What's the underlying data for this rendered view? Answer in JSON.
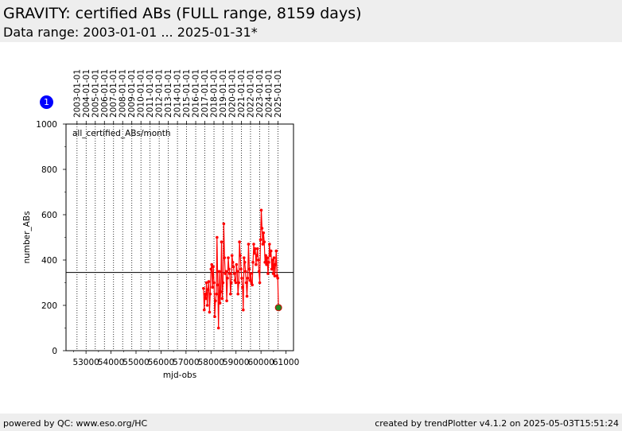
{
  "header": {
    "title": "GRAVITY: certified ABs (FULL range, 8159 days)",
    "subtitle": "Data range: 2003-01-01 ... 2025-01-31*"
  },
  "footer": {
    "left": "powered by QC: www.eso.org/HC",
    "right": "created by trendPlotter v4.1.2 on 2025-05-03T15:51:24"
  },
  "badge": {
    "label": "1",
    "color": "#0000ff"
  },
  "chart_data": {
    "type": "line",
    "annotation": "all_certified_ABs/month",
    "xlabel": "mjd-obs",
    "ylabel": "number_ABs",
    "xlim": [
      52200,
      61300
    ],
    "ylim": [
      0,
      1000
    ],
    "x_ticks": [
      53000,
      54000,
      55000,
      56000,
      57000,
      58000,
      59000,
      60000,
      61000
    ],
    "y_ticks": [
      0,
      200,
      400,
      600,
      800,
      1000
    ],
    "date_ticks": [
      {
        "label": "2003-01-01",
        "mjd": 52640
      },
      {
        "label": "2004-01-01",
        "mjd": 53005
      },
      {
        "label": "2005-01-01",
        "mjd": 53371
      },
      {
        "label": "2006-01-01",
        "mjd": 53736
      },
      {
        "label": "2007-01-01",
        "mjd": 54101
      },
      {
        "label": "2008-01-01",
        "mjd": 54466
      },
      {
        "label": "2009-01-01",
        "mjd": 54832
      },
      {
        "label": "2010-01-01",
        "mjd": 55197
      },
      {
        "label": "2011-01-01",
        "mjd": 55562
      },
      {
        "label": "2012-01-01",
        "mjd": 55927
      },
      {
        "label": "2013-01-01",
        "mjd": 56293
      },
      {
        "label": "2014-01-01",
        "mjd": 56658
      },
      {
        "label": "2015-01-01",
        "mjd": 57023
      },
      {
        "label": "2016-01-01",
        "mjd": 57388
      },
      {
        "label": "2017-01-01",
        "mjd": 57754
      },
      {
        "label": "2018-01-01",
        "mjd": 58119
      },
      {
        "label": "2019-01-01",
        "mjd": 58484
      },
      {
        "label": "2020-01-01",
        "mjd": 58849
      },
      {
        "label": "2021-01-01",
        "mjd": 59215
      },
      {
        "label": "2022-01-01",
        "mjd": 59580
      },
      {
        "label": "2023-01-01",
        "mjd": 59945
      },
      {
        "label": "2024-01-01",
        "mjd": 60310
      },
      {
        "label": "2025-01-01",
        "mjd": 60676
      }
    ],
    "reference_line": 345,
    "series_color": "#ff0000",
    "last_point_color": "#228b22",
    "x": [
      57700,
      57730,
      57760,
      57790,
      57820,
      57850,
      57880,
      57910,
      57940,
      57970,
      58000,
      58030,
      58060,
      58090,
      58120,
      58150,
      58180,
      58210,
      58240,
      58270,
      58300,
      58330,
      58360,
      58390,
      58420,
      58450,
      58480,
      58510,
      58540,
      58570,
      58600,
      58630,
      58660,
      58690,
      58720,
      58750,
      58780,
      58810,
      58840,
      58870,
      58900,
      58930,
      58960,
      58990,
      59020,
      59050,
      59080,
      59110,
      59140,
      59170,
      59200,
      59230,
      59260,
      59290,
      59320,
      59350,
      59380,
      59410,
      59440,
      59470,
      59500,
      59530,
      59560,
      59590,
      59620,
      59650,
      59680,
      59710,
      59740,
      59770,
      59800,
      59830,
      59860,
      59890,
      59920,
      59950,
      59980,
      60010,
      60040,
      60070,
      60100,
      60130,
      60160,
      60190,
      60220,
      60250,
      60280,
      60310,
      60340,
      60370,
      60400,
      60430,
      60460,
      60490,
      60520,
      60550,
      60580,
      60610,
      60640,
      60670,
      60700
    ],
    "y": [
      275,
      180,
      250,
      230,
      300,
      200,
      270,
      305,
      170,
      250,
      360,
      380,
      280,
      370,
      300,
      150,
      220,
      250,
      500,
      290,
      100,
      350,
      210,
      260,
      480,
      230,
      300,
      560,
      410,
      340,
      350,
      220,
      320,
      410,
      360,
      340,
      250,
      300,
      420,
      390,
      370,
      340,
      310,
      300,
      380,
      350,
      250,
      300,
      480,
      420,
      360,
      320,
      280,
      180,
      410,
      390,
      350,
      300,
      240,
      320,
      470,
      360,
      310,
      340,
      300,
      290,
      390,
      470,
      430,
      450,
      380,
      420,
      450,
      400,
      350,
      300,
      490,
      620,
      540,
      470,
      520,
      480,
      390,
      420,
      380,
      410,
      340,
      390,
      470,
      420,
      440,
      360,
      400,
      340,
      410,
      330,
      380,
      440,
      330,
      320,
      190
    ]
  }
}
